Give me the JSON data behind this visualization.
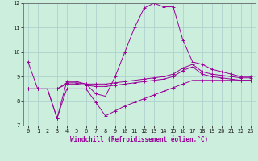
{
  "xlabel": "Windchill (Refroidissement éolien,°C)",
  "background_color": "#cceedd",
  "grid_color": "#aacccc",
  "line_color": "#990099",
  "xlim": [
    -0.5,
    23.5
  ],
  "ylim": [
    7,
    12
  ],
  "yticks": [
    7,
    8,
    9,
    10,
    11,
    12
  ],
  "xticks": [
    0,
    1,
    2,
    3,
    4,
    5,
    6,
    7,
    8,
    9,
    10,
    11,
    12,
    13,
    14,
    15,
    16,
    17,
    18,
    19,
    20,
    21,
    22,
    23
  ],
  "series": [
    [
      9.6,
      8.5,
      8.5,
      7.3,
      8.8,
      8.8,
      8.7,
      8.3,
      8.2,
      9.0,
      10.0,
      11.0,
      11.8,
      12.0,
      11.85,
      11.85,
      10.5,
      9.6,
      9.5,
      9.3,
      9.2,
      9.1,
      9.0,
      9.0
    ],
    [
      8.5,
      8.5,
      8.5,
      8.5,
      8.75,
      8.75,
      8.7,
      8.7,
      8.7,
      8.75,
      8.8,
      8.85,
      8.9,
      8.95,
      9.0,
      9.1,
      9.35,
      9.5,
      9.2,
      9.1,
      9.05,
      9.0,
      8.95,
      8.95
    ],
    [
      8.5,
      8.5,
      8.5,
      8.5,
      8.7,
      8.7,
      8.65,
      8.6,
      8.6,
      8.65,
      8.7,
      8.75,
      8.8,
      8.85,
      8.9,
      9.0,
      9.25,
      9.4,
      9.1,
      9.0,
      8.95,
      8.9,
      8.85,
      8.85
    ],
    [
      8.5,
      8.5,
      8.5,
      7.3,
      8.5,
      8.5,
      8.5,
      7.95,
      7.4,
      7.6,
      7.8,
      7.95,
      8.1,
      8.25,
      8.4,
      8.55,
      8.7,
      8.85,
      8.85,
      8.85,
      8.85,
      8.85,
      8.85,
      8.85
    ]
  ]
}
